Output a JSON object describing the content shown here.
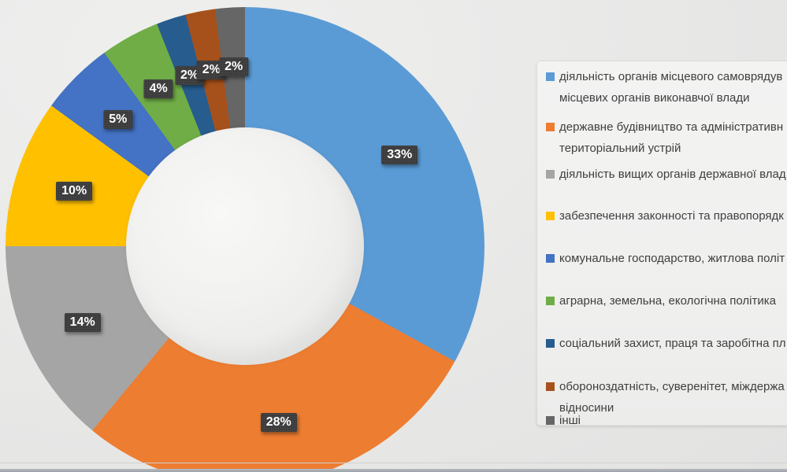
{
  "chart_data": {
    "type": "pie",
    "subtype": "donut",
    "hole_ratio": 0.5,
    "start_angle_deg": 0,
    "direction": "clockwise",
    "legend_position": "right",
    "title": "",
    "data_label_style": {
      "text_color": "#ffffff",
      "box_color": "#3a3a3a"
    },
    "legend_text_color": "#3f3f3f",
    "slices": [
      {
        "value_pct": 33,
        "data_label": "33%",
        "color": "#5B9BD5",
        "legend_lines": [
          "діяльність органів місцевого самоврядув",
          "місцевих органів виконавчої влади"
        ]
      },
      {
        "value_pct": 28,
        "data_label": "28%",
        "color": "#ED7D31",
        "legend_lines": [
          "державне будівництво та адміністративн",
          "територіальний устрій"
        ]
      },
      {
        "value_pct": 14,
        "data_label": "14%",
        "color": "#A5A5A5",
        "legend_lines": [
          "діяльність вищих органів державної влад"
        ]
      },
      {
        "value_pct": 10,
        "data_label": "10%",
        "color": "#FFC000",
        "legend_lines": [
          "забезпечення законності та правопорядк"
        ]
      },
      {
        "value_pct": 5,
        "data_label": "5%",
        "color": "#4472C4",
        "legend_lines": [
          "комунальне господарство, житлова політ"
        ]
      },
      {
        "value_pct": 4,
        "data_label": "4%",
        "color": "#70AD47",
        "legend_lines": [
          "аграрна, земельна, екологічна політика"
        ]
      },
      {
        "value_pct": 2,
        "data_label": "2%",
        "color": "#275C8F",
        "legend_lines": [
          "соціальний захист, праця та заробітна пл"
        ]
      },
      {
        "value_pct": 2,
        "data_label": "2%",
        "color": "#A6511B",
        "legend_lines": [
          "обороноздатність, суверенітет, міждержа",
          "відносини"
        ]
      },
      {
        "value_pct": 2,
        "data_label": "2%",
        "color": "#666666",
        "legend_lines": [
          "інші"
        ]
      }
    ]
  }
}
